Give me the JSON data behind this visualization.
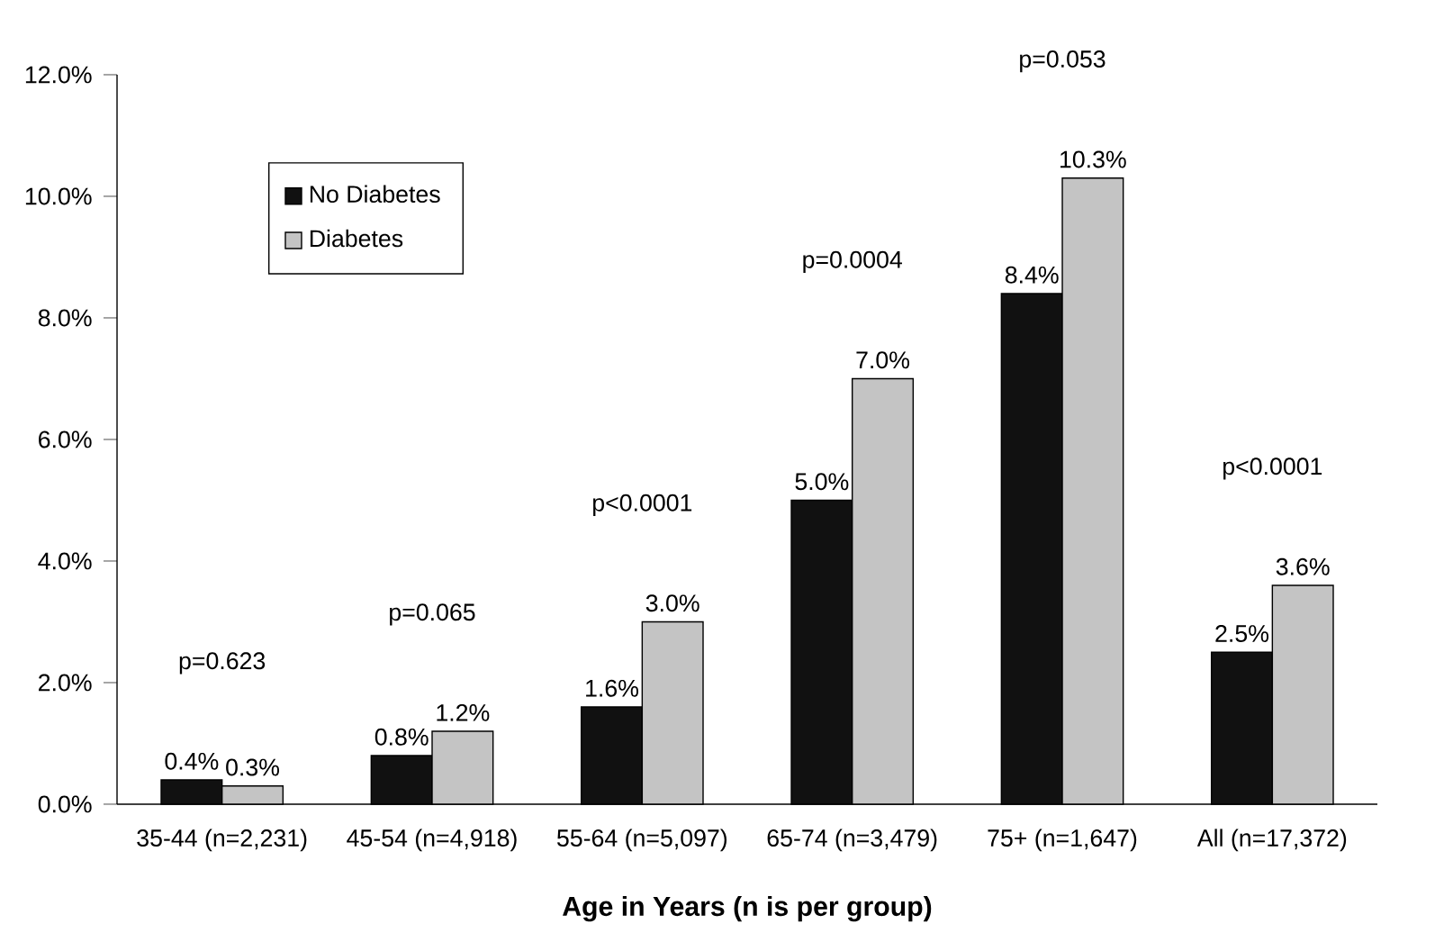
{
  "chart_data": {
    "type": "bar",
    "xlabel": "Age in Years (n is per group)",
    "categories": [
      "35-44 (n=2,231)",
      "45-54 (n=4,918)",
      "55-64 (n=5,097)",
      "65-74 (n=3,479)",
      "75+ (n=1,647)",
      "All (n=17,372)"
    ],
    "series": [
      {
        "name": "No Diabetes",
        "color": "#111111",
        "values": [
          0.4,
          0.8,
          1.6,
          5.0,
          8.4,
          2.5
        ],
        "value_labels": [
          "0.4%",
          "0.8%",
          "1.6%",
          "5.0%",
          "8.4%",
          "2.5%"
        ]
      },
      {
        "name": "Diabetes",
        "color": "#c4c4c4",
        "values": [
          0.3,
          1.2,
          3.0,
          7.0,
          10.3,
          3.6
        ],
        "value_labels": [
          "0.3%",
          "1.2%",
          "3.0%",
          "7.0%",
          "10.3%",
          "3.6%"
        ]
      }
    ],
    "ylim": [
      0,
      12
    ],
    "yticks": [
      {
        "value": 0,
        "label": "0.0%"
      },
      {
        "value": 2,
        "label": "2.0%"
      },
      {
        "value": 4,
        "label": "4.0%"
      },
      {
        "value": 6,
        "label": "6.0%"
      },
      {
        "value": 8,
        "label": "8.0%"
      },
      {
        "value": 10,
        "label": "10.0%"
      },
      {
        "value": 12,
        "label": "12.0%"
      }
    ],
    "annotations": [
      "p=0.623",
      "p=0.065",
      "p<0.0001",
      "p=0.0004",
      "p=0.053",
      "p<0.0001"
    ],
    "legend": "top left",
    "grid": false
  }
}
